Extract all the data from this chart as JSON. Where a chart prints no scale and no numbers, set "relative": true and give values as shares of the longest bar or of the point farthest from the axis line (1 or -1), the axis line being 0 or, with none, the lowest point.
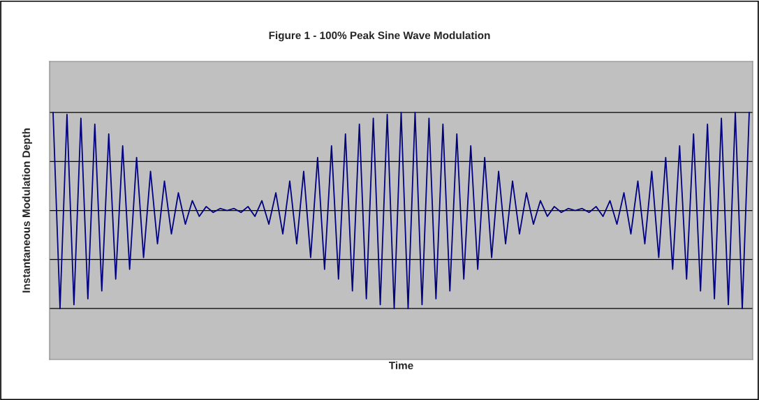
{
  "chart_data": {
    "type": "line",
    "title": "Figure 1 - 100% Peak Sine Wave Modulation",
    "xlabel": "Time",
    "ylabel": "Instantaneous Modulation Depth",
    "relative": true,
    "grid": "y",
    "legend": false,
    "marker": "none",
    "line_style": "solid",
    "categories": [
      null,
      null,
      null,
      null,
      null,
      null,
      null,
      null,
      null,
      null,
      null,
      null,
      null,
      null,
      null,
      null,
      null,
      null,
      null,
      null,
      null,
      null,
      null,
      null,
      null,
      null,
      null,
      null,
      null,
      null,
      null,
      null,
      null,
      null,
      null,
      null,
      null,
      null,
      null,
      null,
      null,
      null,
      null,
      null,
      null,
      null,
      null,
      null,
      null,
      null,
      null,
      null,
      null,
      null,
      null,
      null,
      null,
      null,
      null,
      null,
      null,
      null,
      null,
      null,
      null,
      null,
      null,
      null,
      null,
      null,
      null,
      null,
      null,
      null,
      null,
      null,
      null,
      null,
      null,
      null,
      null,
      null,
      null,
      null,
      null,
      null,
      null,
      null,
      null,
      null,
      null,
      null,
      null,
      null,
      null,
      null,
      null,
      null,
      null,
      null,
      null
    ],
    "series": [
      {
        "color": "#000080",
        "values": [
          1.0,
          0.0,
          0.99,
          0.02,
          0.97,
          0.05,
          0.94,
          0.09,
          0.89,
          0.15,
          0.83,
          0.2,
          0.77,
          0.26,
          0.7,
          0.33,
          0.65,
          0.38,
          0.59,
          0.43,
          0.55,
          0.47,
          0.52,
          0.49,
          0.51,
          0.5,
          0.51,
          0.49,
          0.52,
          0.47,
          0.55,
          0.43,
          0.59,
          0.38,
          0.65,
          0.33,
          0.7,
          0.26,
          0.77,
          0.2,
          0.83,
          0.15,
          0.89,
          0.09,
          0.94,
          0.05,
          0.97,
          0.02,
          0.99,
          0.0,
          1.0,
          0.0,
          1.0,
          0.02,
          0.97,
          0.05,
          0.94,
          0.09,
          0.89,
          0.15,
          0.83,
          0.2,
          0.77,
          0.26,
          0.7,
          0.33,
          0.65,
          0.38,
          0.59,
          0.43,
          0.55,
          0.47,
          0.52,
          0.49,
          0.51,
          0.5,
          0.51,
          0.49,
          0.52,
          0.47,
          0.55,
          0.43,
          0.59,
          0.38,
          0.65,
          0.33,
          0.7,
          0.26,
          0.77,
          0.2,
          0.83,
          0.15,
          0.89,
          0.09,
          0.94,
          0.05,
          0.97,
          0.02,
          1.0,
          0.0,
          1.0
        ]
      }
    ]
  }
}
